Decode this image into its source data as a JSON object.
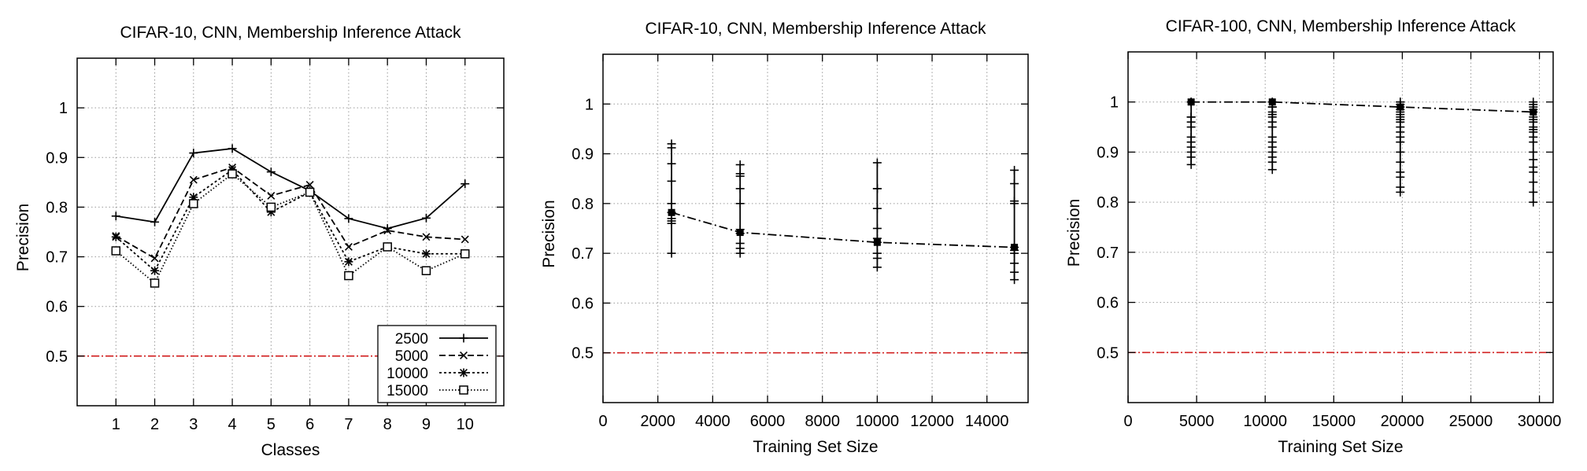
{
  "colors": {
    "axis": "#000000",
    "grid": "#9a9a9a",
    "data": "#000000",
    "baseline": "#d22222"
  },
  "chart_data": [
    {
      "type": "line",
      "title": "CIFAR-10, CNN, Membership Inference Attack",
      "xlabel": "Classes",
      "ylabel": "Precision",
      "xlim": [
        0,
        11
      ],
      "ylim": [
        0.4,
        1.1
      ],
      "xticks": [
        1,
        2,
        3,
        4,
        5,
        6,
        7,
        8,
        9,
        10
      ],
      "yticks": [
        0.5,
        0.6,
        0.7,
        0.8,
        0.9,
        1
      ],
      "ytick_labels": [
        "0.5",
        "0.6",
        "0.7",
        "0.8",
        "0.9",
        "1"
      ],
      "grid": true,
      "baseline": 0.5,
      "legend": "bottom-right",
      "x": [
        1,
        2,
        3,
        4,
        5,
        6,
        7,
        8,
        9,
        10
      ],
      "series": [
        {
          "name": "2500",
          "marker": "plus",
          "dash": "solid",
          "values": [
            0.782,
            0.77,
            0.909,
            0.918,
            0.871,
            0.833,
            0.777,
            0.757,
            0.778,
            0.847
          ]
        },
        {
          "name": "5000",
          "marker": "x",
          "dash": "dashed",
          "values": [
            0.742,
            0.697,
            0.855,
            0.88,
            0.823,
            0.845,
            0.72,
            0.753,
            0.74,
            0.735
          ]
        },
        {
          "name": "10000",
          "marker": "star",
          "dash": "dotted",
          "values": [
            0.74,
            0.672,
            0.82,
            0.875,
            0.79,
            0.83,
            0.69,
            0.72,
            0.706,
            0.706
          ]
        },
        {
          "name": "15000",
          "marker": "square",
          "dash": "fine-dotted",
          "values": [
            0.712,
            0.647,
            0.807,
            0.867,
            0.8,
            0.83,
            0.662,
            0.72,
            0.672,
            0.706
          ]
        }
      ]
    },
    {
      "type": "line",
      "title": "CIFAR-10, CNN, Membership Inference Attack",
      "xlabel": "Training Set Size",
      "ylabel": "Precision",
      "xlim": [
        0,
        15500
      ],
      "ylim": [
        0.4,
        1.1
      ],
      "xticks": [
        0,
        2000,
        4000,
        6000,
        8000,
        10000,
        12000,
        14000
      ],
      "yticks": [
        0.5,
        0.6,
        0.7,
        0.8,
        0.9,
        1
      ],
      "ytick_labels": [
        "0.5",
        "0.6",
        "0.7",
        "0.8",
        "0.9",
        "1"
      ],
      "grid": true,
      "baseline": 0.5,
      "series": [
        {
          "dash": "dash-dot",
          "x": [
            2500,
            5000,
            10000,
            15000
          ],
          "values": [
            0.782,
            0.742,
            0.722,
            0.712
          ],
          "per_class_points": [
            [
              0.912,
              0.92,
              0.88,
              0.845,
              0.8,
              0.77,
              0.765,
              0.76,
              0.782,
              0.7
            ],
            [
              0.878,
              0.86,
              0.83,
              0.8,
              0.748,
              0.74,
              0.72,
              0.71,
              0.7,
              0.855
            ],
            [
              0.882,
              0.83,
              0.79,
              0.75,
              0.722,
              0.73,
              0.7,
              0.69,
              0.672,
              0.83
            ],
            [
              0.867,
              0.84,
              0.805,
              0.8,
              0.712,
              0.706,
              0.7,
              0.68,
              0.662,
              0.647
            ]
          ]
        }
      ]
    },
    {
      "type": "line",
      "title": "CIFAR-100, CNN, Membership Inference Attack",
      "xlabel": "Training Set Size",
      "ylabel": "Precision",
      "xlim": [
        0,
        31000
      ],
      "ylim": [
        0.4,
        1.1
      ],
      "xticks": [
        0,
        5000,
        10000,
        15000,
        20000,
        25000,
        30000
      ],
      "yticks": [
        0.5,
        0.6,
        0.7,
        0.8,
        0.9,
        1
      ],
      "ytick_labels": [
        "0.5",
        "0.6",
        "0.7",
        "0.8",
        "0.9",
        "1"
      ],
      "grid": true,
      "baseline": 0.5,
      "series": [
        {
          "dash": "dash-dot",
          "x": [
            4600,
            10520,
            19850,
            29550
          ],
          "values": [
            1.0,
            1.0,
            0.99,
            0.98
          ],
          "per_class_points": [
            [
              1.0,
              1.0,
              0.97,
              0.95,
              0.93,
              0.92,
              0.91,
              0.9,
              0.89,
              0.875,
              0.97,
              0.96
            ],
            [
              1.0,
              1.0,
              0.99,
              0.98,
              0.97,
              0.96,
              0.95,
              0.93,
              0.92,
              0.91,
              0.9,
              0.89,
              0.88,
              0.865,
              0.99,
              0.975
            ],
            [
              1.0,
              1.0,
              0.995,
              0.99,
              0.98,
              0.97,
              0.96,
              0.95,
              0.94,
              0.93,
              0.92,
              0.9,
              0.88,
              0.86,
              0.85,
              0.83,
              0.82,
              0.985,
              0.975,
              0.965
            ],
            [
              1.0,
              0.995,
              0.99,
              0.98,
              0.97,
              0.96,
              0.95,
              0.94,
              0.93,
              0.92,
              0.9,
              0.885,
              0.87,
              0.86,
              0.84,
              0.82,
              0.8,
              0.985,
              0.965,
              0.945
            ]
          ]
        }
      ]
    }
  ]
}
